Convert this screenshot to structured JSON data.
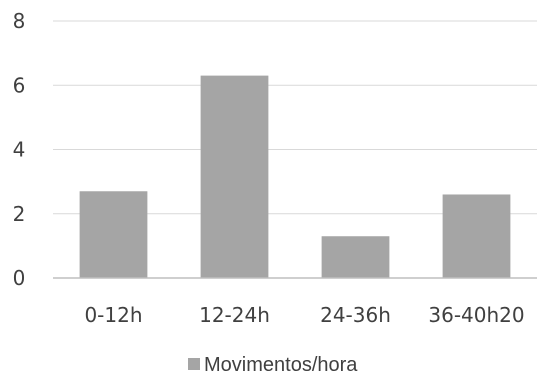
{
  "chart_data": {
    "type": "bar",
    "categories": [
      "0-12h",
      "12-24h",
      "24-36h",
      "36-40h20"
    ],
    "series": [
      {
        "name": "Movimentos/hora",
        "values": [
          2.7,
          6.3,
          1.3,
          2.6
        ]
      }
    ],
    "ylim": [
      0,
      8
    ],
    "yticks": [
      "0",
      "2",
      "4",
      "6",
      "8"
    ],
    "grid": true,
    "legend_position": "bottom",
    "colors": {
      "bar": "#a5a5a5",
      "grid": "#d9d9d9",
      "axis": "#bfbfbf",
      "text": "#404040"
    }
  }
}
